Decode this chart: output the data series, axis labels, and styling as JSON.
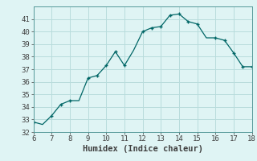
{
  "x": [
    6,
    6.5,
    7,
    7.5,
    8,
    8.5,
    9,
    9.5,
    10,
    10.5,
    11,
    11.5,
    12,
    12.5,
    13,
    13.5,
    14,
    14.5,
    15,
    15.5,
    16,
    16.5,
    17,
    17.5,
    18
  ],
  "y": [
    32.8,
    32.6,
    33.3,
    34.2,
    34.5,
    34.5,
    36.3,
    36.5,
    37.3,
    38.4,
    37.3,
    38.5,
    40.0,
    40.3,
    40.4,
    41.3,
    41.4,
    40.8,
    40.6,
    39.5,
    39.5,
    39.3,
    38.3,
    37.2,
    37.2
  ],
  "xlabel": "Humidex (Indice chaleur)",
  "xlim": [
    6,
    18
  ],
  "ylim": [
    32,
    42
  ],
  "xticks": [
    6,
    7,
    8,
    9,
    10,
    11,
    12,
    13,
    14,
    15,
    16,
    17,
    18
  ],
  "yticks": [
    32,
    33,
    34,
    35,
    36,
    37,
    38,
    39,
    40,
    41
  ],
  "line_color": "#006666",
  "marker_x": [
    6,
    7,
    7.5,
    8,
    9,
    9.5,
    10,
    10.5,
    11,
    12,
    12.5,
    13,
    13.5,
    14,
    14.5,
    15,
    16,
    16.5,
    17,
    17.5,
    18
  ],
  "marker_y": [
    32.8,
    33.3,
    34.2,
    34.5,
    36.3,
    36.5,
    37.3,
    38.4,
    37.3,
    40.0,
    40.3,
    40.4,
    41.3,
    41.4,
    40.8,
    40.6,
    39.5,
    39.3,
    38.3,
    37.2,
    37.2
  ],
  "bg_color": "#dff4f4",
  "grid_color": "#b8dcdc",
  "tick_fontsize": 6.5,
  "xlabel_fontsize": 7.5,
  "label_color": "#404040",
  "spine_color": "#559999"
}
